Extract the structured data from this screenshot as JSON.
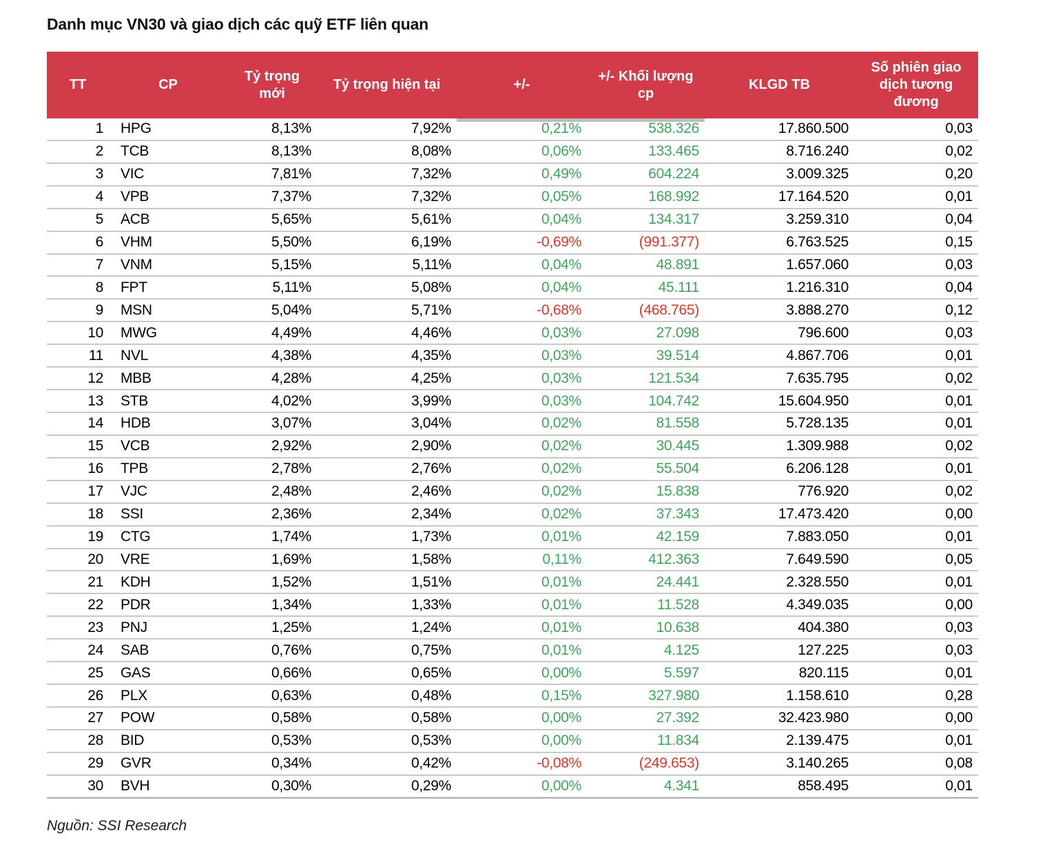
{
  "title": "Danh mục VN30 và giao dịch các quỹ ETF liên quan",
  "source": "Nguồn: SSI Research",
  "colors": {
    "header_bg": "#D23B4A",
    "header_text": "#FFFFFF",
    "positive": "#3FA45C",
    "negative": "#E63528",
    "row_border": "#C8C8C8"
  },
  "table": {
    "columns": [
      "TT",
      "CP",
      "Tỷ trọng mới",
      "Tỷ trọng hiện tại",
      "+/-",
      "+/- Khối lượng cp",
      "KLGD TB",
      "Số phiên giao dịch tương đương"
    ],
    "rows": [
      [
        "1",
        "HPG",
        "8,13%",
        "7,92%",
        "0,21%",
        "538.326",
        "17.860.500",
        "0,03"
      ],
      [
        "2",
        "TCB",
        "8,13%",
        "8,08%",
        "0,06%",
        "133.465",
        "8.716.240",
        "0,02"
      ],
      [
        "3",
        "VIC",
        "7,81%",
        "7,32%",
        "0,49%",
        "604.224",
        "3.009.325",
        "0,20"
      ],
      [
        "4",
        "VPB",
        "7,37%",
        "7,32%",
        "0,05%",
        "168.992",
        "17.164.520",
        "0,01"
      ],
      [
        "5",
        "ACB",
        "5,65%",
        "5,61%",
        "0,04%",
        "134.317",
        "3.259.310",
        "0,04"
      ],
      [
        "6",
        "VHM",
        "5,50%",
        "6,19%",
        "-0,69%",
        "(991.377)",
        "6.763.525",
        "0,15"
      ],
      [
        "7",
        "VNM",
        "5,15%",
        "5,11%",
        "0,04%",
        "48.891",
        "1.657.060",
        "0,03"
      ],
      [
        "8",
        "FPT",
        "5,11%",
        "5,08%",
        "0,04%",
        "45.111",
        "1.216.310",
        "0,04"
      ],
      [
        "9",
        "MSN",
        "5,04%",
        "5,71%",
        "-0,68%",
        "(468.765)",
        "3.888.270",
        "0,12"
      ],
      [
        "10",
        "MWG",
        "4,49%",
        "4,46%",
        "0,03%",
        "27.098",
        "796.600",
        "0,03"
      ],
      [
        "11",
        "NVL",
        "4,38%",
        "4,35%",
        "0,03%",
        "39.514",
        "4.867.706",
        "0,01"
      ],
      [
        "12",
        "MBB",
        "4,28%",
        "4,25%",
        "0,03%",
        "121.534",
        "7.635.795",
        "0,02"
      ],
      [
        "13",
        "STB",
        "4,02%",
        "3,99%",
        "0,03%",
        "104.742",
        "15.604.950",
        "0,01"
      ],
      [
        "14",
        "HDB",
        "3,07%",
        "3,04%",
        "0,02%",
        "81.558",
        "5.728.135",
        "0,01"
      ],
      [
        "15",
        "VCB",
        "2,92%",
        "2,90%",
        "0,02%",
        "30.445",
        "1.309.988",
        "0,02"
      ],
      [
        "16",
        "TPB",
        "2,78%",
        "2,76%",
        "0,02%",
        "55.504",
        "6.206.128",
        "0,01"
      ],
      [
        "17",
        "VJC",
        "2,48%",
        "2,46%",
        "0,02%",
        "15.838",
        "776.920",
        "0,02"
      ],
      [
        "18",
        "SSI",
        "2,36%",
        "2,34%",
        "0,02%",
        "37.343",
        "17.473.420",
        "0,00"
      ],
      [
        "19",
        "CTG",
        "1,74%",
        "1,73%",
        "0,01%",
        "42.159",
        "7.883.050",
        "0,01"
      ],
      [
        "20",
        "VRE",
        "1,69%",
        "1,58%",
        "0,11%",
        "412.363",
        "7.649.590",
        "0,05"
      ],
      [
        "21",
        "KDH",
        "1,52%",
        "1,51%",
        "0,01%",
        "24.441",
        "2.328.550",
        "0,01"
      ],
      [
        "22",
        "PDR",
        "1,34%",
        "1,33%",
        "0,01%",
        "11.528",
        "4.349.035",
        "0,00"
      ],
      [
        "23",
        "PNJ",
        "1,25%",
        "1,24%",
        "0,01%",
        "10.638",
        "404.380",
        "0,03"
      ],
      [
        "24",
        "SAB",
        "0,76%",
        "0,75%",
        "0,01%",
        "4.125",
        "127.225",
        "0,03"
      ],
      [
        "25",
        "GAS",
        "0,66%",
        "0,65%",
        "0,00%",
        "5.597",
        "820.115",
        "0,01"
      ],
      [
        "26",
        "PLX",
        "0,63%",
        "0,48%",
        "0,15%",
        "327.980",
        "1.158.610",
        "0,28"
      ],
      [
        "27",
        "POW",
        "0,58%",
        "0,58%",
        "0,00%",
        "27.392",
        "32.423.980",
        "0,00"
      ],
      [
        "28",
        "BID",
        "0,53%",
        "0,53%",
        "0,00%",
        "11.834",
        "2.139.475",
        "0,01"
      ],
      [
        "29",
        "GVR",
        "0,34%",
        "0,42%",
        "-0,08%",
        "(249.653)",
        "3.140.265",
        "0,08"
      ],
      [
        "30",
        "BVH",
        "0,30%",
        "0,29%",
        "0,00%",
        "4.341",
        "858.495",
        "0,01"
      ]
    ]
  }
}
